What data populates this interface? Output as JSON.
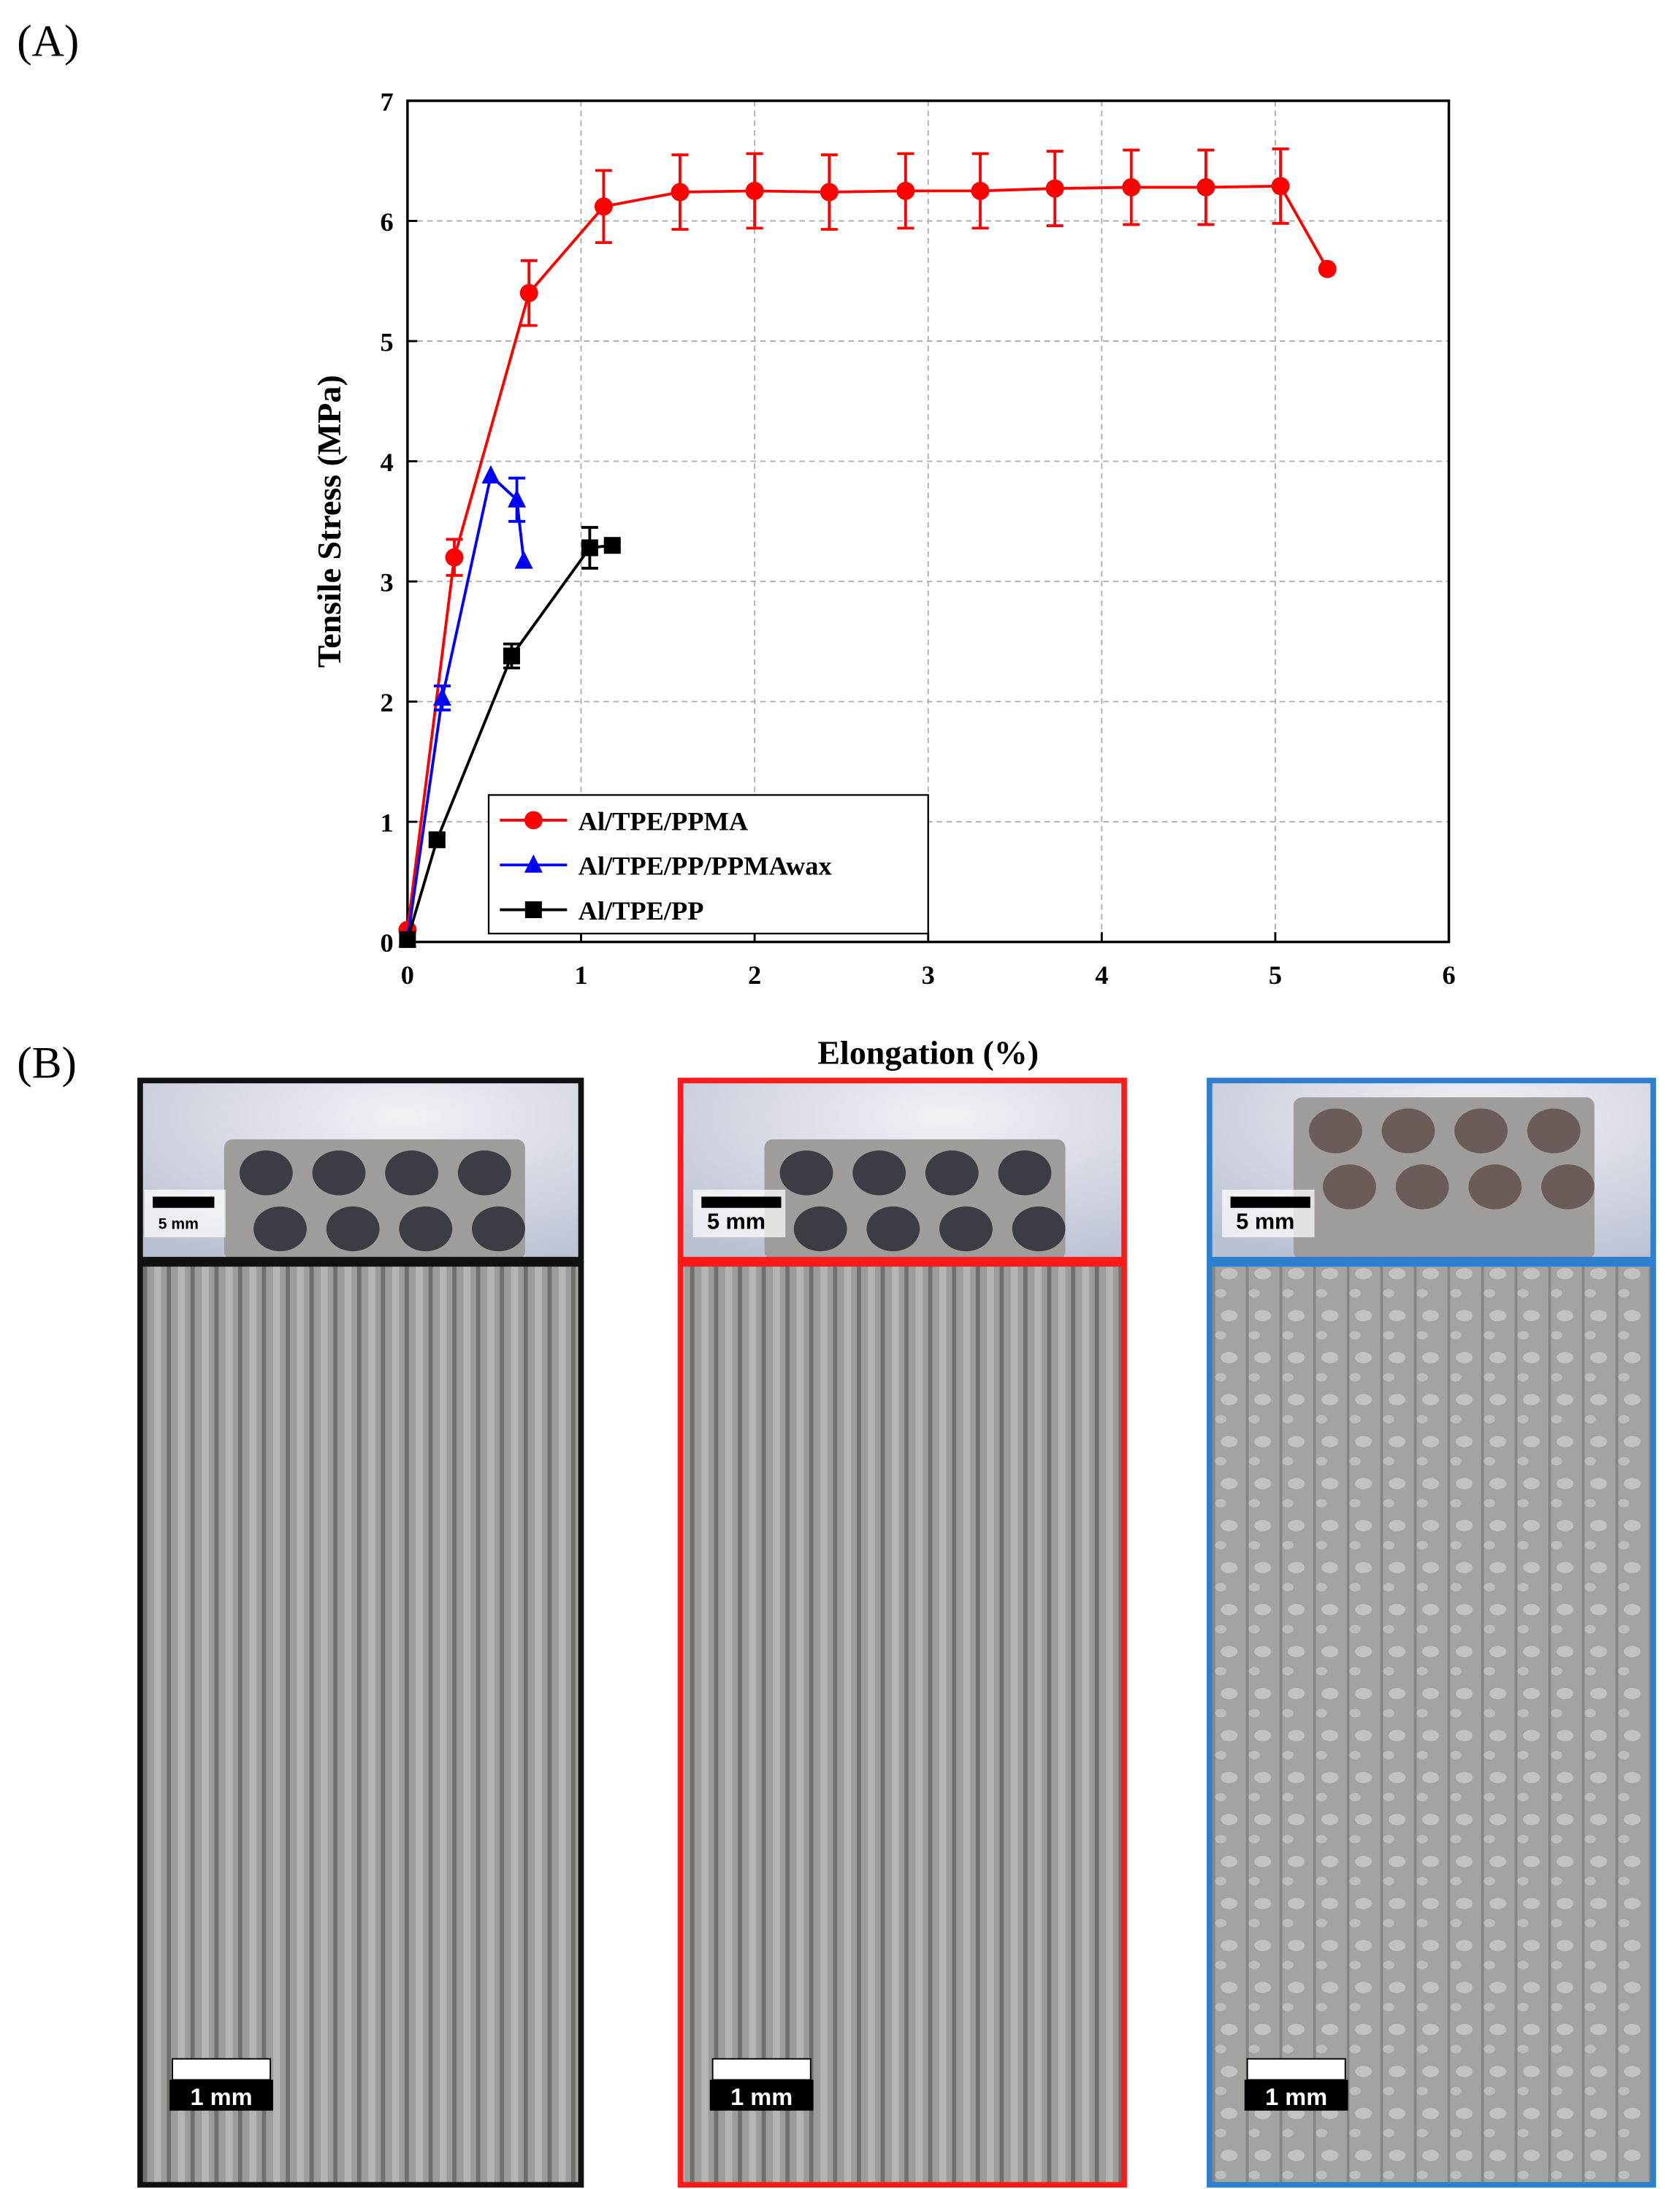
{
  "chart_data": {
    "type": "line",
    "ylabel": "Tensile Stress (MPa)",
    "xlabel": "Elongation (%)",
    "xlim": [
      0,
      6
    ],
    "ylim": [
      0,
      7
    ],
    "xticks": [
      0,
      1,
      2,
      3,
      4,
      5,
      6
    ],
    "yticks": [
      0,
      1,
      2,
      3,
      4,
      5,
      6,
      7
    ],
    "grid": true,
    "legend": "lower left",
    "series": [
      {
        "name": "Al/TPE/PPMA",
        "color": "#ff0000",
        "marker": "circle",
        "x": [
          0,
          0.27,
          0.7,
          1.13,
          1.57,
          2.0,
          2.43,
          2.87,
          3.3,
          3.73,
          4.17,
          4.6,
          5.03,
          5.3
        ],
        "values": [
          0.1,
          3.2,
          5.4,
          6.12,
          6.24,
          6.25,
          6.24,
          6.25,
          6.25,
          6.27,
          6.28,
          6.28,
          6.29,
          5.6
        ],
        "errors": [
          null,
          0.15,
          0.27,
          0.3,
          0.31,
          0.31,
          0.31,
          0.31,
          0.31,
          0.31,
          0.31,
          0.31,
          0.31,
          null
        ]
      },
      {
        "name": "Al/TPE/PP/PPMAwax",
        "color": "#0000ff",
        "marker": "triangle",
        "x": [
          0,
          0.2,
          0.48,
          0.63,
          0.67
        ],
        "values": [
          0.02,
          2.03,
          3.88,
          3.68,
          3.17
        ],
        "errors": [
          null,
          0.1,
          null,
          0.18,
          null
        ]
      },
      {
        "name": "Al/TPE/PP",
        "color": "#000000",
        "marker": "square",
        "x": [
          0,
          0.17,
          0.6,
          1.05,
          1.18
        ],
        "values": [
          0.02,
          0.85,
          2.38,
          3.28,
          3.3
        ],
        "errors": [
          null,
          0.05,
          0.1,
          0.17,
          0.03
        ]
      }
    ]
  },
  "figure": {
    "panel_a_label": "(A)",
    "panel_b_label": "(B)",
    "photos": [
      {
        "scale_bar": "5 mm"
      },
      {
        "scale_bar": "5 mm"
      },
      {
        "scale_bar": "5 mm"
      },
      {
        "scale_bar": "1 mm"
      },
      {
        "scale_bar": "1 mm"
      },
      {
        "scale_bar": "1 mm"
      }
    ]
  }
}
